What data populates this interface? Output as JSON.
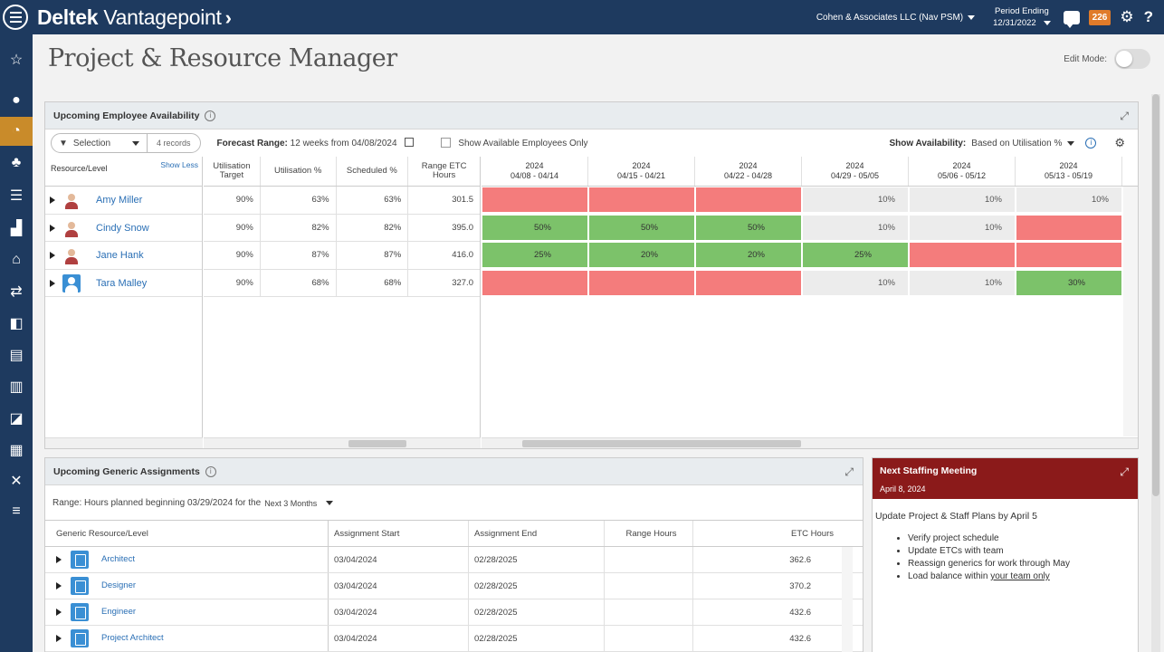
{
  "topbar": {
    "brand_bold": "Deltek",
    "brand_light": "Vantagepoint",
    "company": "Cohen & Associates LLC (Nav PSM)",
    "period_label": "Period Ending",
    "period_date": "12/31/2022",
    "notif_count": "226"
  },
  "page": {
    "title": "Project & Resource Manager",
    "edit_mode_label": "Edit Mode:"
  },
  "availability": {
    "title": "Upcoming Employee Availability",
    "selection_label": "Selection",
    "records": "4 records",
    "forecast_label": "Forecast Range:",
    "forecast_value": "12 weeks from 04/08/2024",
    "show_available_only": "Show Available Employees Only",
    "show_availability_label": "Show Availability:",
    "show_availability_value": "Based on Utilisation %",
    "col_resource": "Resource/Level",
    "show_less": "Show Less",
    "col_util_target": "Utilisation Target",
    "col_util_pct": "Utilisation %",
    "col_sched_pct": "Scheduled %",
    "col_range_etc": "Range ETC Hours",
    "weeks": [
      {
        "year": "2024",
        "range": "04/08 - 04/14"
      },
      {
        "year": "2024",
        "range": "04/15 - 04/21"
      },
      {
        "year": "2024",
        "range": "04/22 - 04/28"
      },
      {
        "year": "2024",
        "range": "04/29 - 05/05"
      },
      {
        "year": "2024",
        "range": "05/06 - 05/12"
      },
      {
        "year": "2024",
        "range": "05/13 - 05/19"
      }
    ],
    "rows": [
      {
        "name": "Amy Miller",
        "target": "90%",
        "util": "63%",
        "sched": "63%",
        "etc": "301.5",
        "cells": [
          {
            "v": "",
            "c": "red"
          },
          {
            "v": "",
            "c": "red"
          },
          {
            "v": "",
            "c": "red"
          },
          {
            "v": "10%",
            "c": "gray"
          },
          {
            "v": "10%",
            "c": "gray"
          },
          {
            "v": "10%",
            "c": "gray"
          }
        ]
      },
      {
        "name": "Cindy Snow",
        "target": "90%",
        "util": "82%",
        "sched": "82%",
        "etc": "395.0",
        "cells": [
          {
            "v": "50%",
            "c": "green"
          },
          {
            "v": "50%",
            "c": "green"
          },
          {
            "v": "50%",
            "c": "green"
          },
          {
            "v": "10%",
            "c": "gray"
          },
          {
            "v": "10%",
            "c": "gray"
          },
          {
            "v": "",
            "c": "red"
          }
        ]
      },
      {
        "name": "Jane Hank",
        "target": "90%",
        "util": "87%",
        "sched": "87%",
        "etc": "416.0",
        "cells": [
          {
            "v": "25%",
            "c": "green"
          },
          {
            "v": "20%",
            "c": "green"
          },
          {
            "v": "20%",
            "c": "green"
          },
          {
            "v": "25%",
            "c": "green"
          },
          {
            "v": "",
            "c": "red"
          },
          {
            "v": "",
            "c": "red"
          }
        ]
      },
      {
        "name": "Tara Malley",
        "target": "90%",
        "util": "68%",
        "sched": "68%",
        "etc": "327.0",
        "cells": [
          {
            "v": "",
            "c": "red"
          },
          {
            "v": "",
            "c": "red"
          },
          {
            "v": "",
            "c": "red"
          },
          {
            "v": "10%",
            "c": "gray"
          },
          {
            "v": "10%",
            "c": "gray"
          },
          {
            "v": "30%",
            "c": "green"
          }
        ]
      }
    ],
    "colors": {
      "red": "#f47c7c",
      "green": "#7cc26a",
      "gray": "#ececec"
    }
  },
  "generic": {
    "title": "Upcoming Generic Assignments",
    "range_text": "Range: Hours planned beginning 03/29/2024 for the",
    "range_option": "Next 3 Months",
    "col_resource": "Generic Resource/Level",
    "col_start": "Assignment Start",
    "col_end": "Assignment End",
    "col_range_hours": "Range Hours",
    "col_etc": "ETC Hours",
    "rows": [
      {
        "name": "Architect",
        "start": "03/04/2024",
        "end": "02/28/2025",
        "range": "",
        "etc": "362.6"
      },
      {
        "name": "Designer",
        "start": "03/04/2024",
        "end": "02/28/2025",
        "range": "",
        "etc": "370.2"
      },
      {
        "name": "Engineer",
        "start": "03/04/2024",
        "end": "02/28/2025",
        "range": "",
        "etc": "432.6"
      },
      {
        "name": "Project Architect",
        "start": "03/04/2024",
        "end": "02/28/2025",
        "range": "",
        "etc": "432.6"
      }
    ]
  },
  "meeting": {
    "title": "Next Staffing Meeting",
    "date": "April 8, 2024",
    "heading": "Update Project & Staff Plans by April 5",
    "items": [
      "Verify project schedule",
      "Update ETCs with team",
      "Reassign generics for work through May"
    ],
    "last_item_prefix": "Load balance within ",
    "last_item_link": "your team only"
  }
}
